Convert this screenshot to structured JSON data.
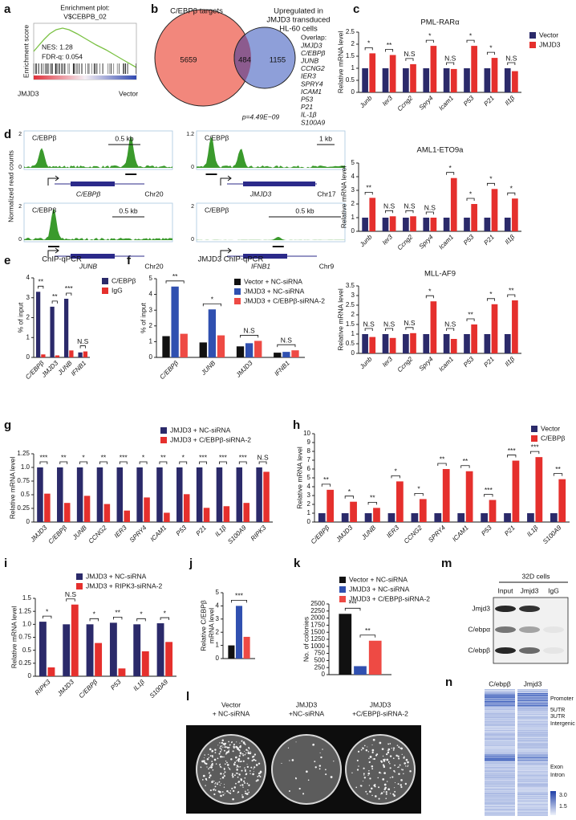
{
  "panel_labels": [
    "a",
    "b",
    "c",
    "d",
    "e",
    "f",
    "g",
    "h",
    "i",
    "j",
    "k",
    "l",
    "m",
    "n"
  ],
  "gsea": {
    "title": [
      "Enrichment plot:",
      "V$CEBPB_02"
    ],
    "ylabel": "Enrichment score",
    "nes": "NES: 1.28",
    "fdr": "FDR-q: 0.054",
    "left": "JMJD3",
    "right": "Vector"
  },
  "venn": {
    "left_label": "C/EBPβ targets",
    "right_label": [
      "Upregulated in",
      "JMJD3 transduced",
      "HL-60 cells"
    ],
    "left": 5659,
    "overlap": 484,
    "right": 1155,
    "overlap_title": "Overlap:",
    "overlap_genes": [
      "JMJD3",
      "C/EBPβ",
      "JUNB",
      "CCNG2",
      "IER3",
      "SPRY4",
      "ICAM1",
      "P53",
      "P21",
      "IL-1β",
      "S100A9"
    ],
    "p_value": "p=4.49E−09"
  },
  "tracks": {
    "ylabel": "Normalized read counts",
    "items": [
      {
        "label": "C/EBPβ",
        "ymax": "2",
        "ymin": "0",
        "scale": "0.5 kb",
        "gene": "C/EBPβ",
        "chr": "Chr20"
      },
      {
        "label": "C/EBPβ",
        "ymax": "1.2",
        "ymin": "0",
        "scale": "1 kb",
        "gene": "JMJD3",
        "chr": "Chr17"
      },
      {
        "label": "C/EBPβ",
        "ymax": "2",
        "ymin": "0",
        "scale": "0.5 kb",
        "gene": "JUNB",
        "chr": "Chr20"
      },
      {
        "label": "C/EBPβ",
        "ymax": "2",
        "ymin": "0",
        "scale": "0.5 kb",
        "gene": "IFNB1",
        "chr": "Chr9"
      }
    ]
  },
  "chart_data": [
    {
      "type": "bar",
      "title": "PML-RARα",
      "ylabel": [
        "Relative mRNA level"
      ],
      "categories": [
        "Junb",
        "Ier3",
        "Ccng2",
        "Spry4",
        "Icam1",
        "P53",
        "P21",
        "Il1β"
      ],
      "series": [
        {
          "name": "Vector",
          "color": "#2b2a6a",
          "values": [
            1,
            1,
            1,
            1,
            1,
            1,
            1,
            1
          ]
        },
        {
          "name": "JMJD3",
          "color": "#e5302d",
          "values": [
            1.62,
            1.55,
            1.17,
            1.93,
            0.97,
            1.93,
            1.43,
            0.88
          ]
        }
      ],
      "significance": [
        "*",
        "**",
        "N.S",
        "*",
        "N.S",
        "*",
        "*",
        "N.S"
      ],
      "ylim": [
        0,
        2.5
      ],
      "yticks": [
        0,
        0.5,
        1,
        1.5,
        2,
        2.5
      ],
      "legend": "upper right"
    },
    {
      "type": "bar",
      "title": "AML1-ETO9a",
      "ylabel": [
        "Relative mRNA level"
      ],
      "categories": [
        "Junb",
        "Ier3",
        "Ccng2",
        "Spry4",
        "Icam1",
        "P53",
        "P21",
        "Il1β"
      ],
      "series": [
        {
          "color": "#2b2a6a",
          "values": [
            1,
            1,
            1,
            1,
            1,
            1,
            1,
            1
          ]
        },
        {
          "color": "#e5302d",
          "values": [
            2.45,
            1.1,
            1.1,
            1.0,
            3.9,
            2.0,
            3.1,
            2.4
          ]
        }
      ],
      "significance": [
        "**",
        "N.S",
        "N.S",
        "N.S",
        "*",
        "*",
        "*",
        "*"
      ],
      "ylim": [
        0,
        5
      ],
      "yticks": [
        0,
        1,
        2,
        3,
        4,
        5
      ]
    },
    {
      "type": "bar",
      "title": "MLL-AF9",
      "ylabel": [
        "Relative mRNA level"
      ],
      "categories": [
        "Junb",
        "Ier3",
        "Ccng2",
        "Spry4",
        "Icam1",
        "P53",
        "P21",
        "Il1β"
      ],
      "series": [
        {
          "color": "#2b2a6a",
          "values": [
            1,
            1,
            1,
            1,
            1,
            1,
            1,
            1
          ]
        },
        {
          "color": "#e5302d",
          "values": [
            0.85,
            0.8,
            1.05,
            2.7,
            0.75,
            1.5,
            2.55,
            2.75
          ]
        }
      ],
      "significance": [
        "N.S",
        "N.S",
        "N.S",
        "*",
        "N.S",
        "**",
        "*",
        "**"
      ],
      "ylim": [
        0,
        3.5
      ],
      "yticks": [
        0,
        0.5,
        1,
        1.5,
        2,
        2.5,
        3,
        3.5
      ]
    },
    {
      "type": "bar",
      "title": "ChIP-qPCR",
      "ylabel": [
        "% of input"
      ],
      "categories": [
        "C/EBPβ",
        "JMJD3",
        "JUNB",
        "IFNB1"
      ],
      "series": [
        {
          "name": "C/EBPβ",
          "color": "#2b2a6a",
          "values": [
            3.3,
            2.55,
            2.95,
            0.25
          ]
        },
        {
          "name": "IgG",
          "color": "#e5302d",
          "values": [
            0.15,
            0.1,
            0.35,
            0.3
          ]
        }
      ],
      "significance": [
        "**",
        "**",
        "***",
        "N.S"
      ],
      "ylim": [
        0,
        4
      ],
      "yticks": [
        0,
        1,
        2,
        3,
        4
      ],
      "legend": "right"
    },
    {
      "type": "bar",
      "title": "JMJD3 ChIP-qPCR",
      "ylabel": [
        "% of input"
      ],
      "categories": [
        "C/EBPβ",
        "JUNB",
        "JMJD3",
        "IFNB1"
      ],
      "series": [
        {
          "name": "Vector + NC-siRNA",
          "color": "#111111",
          "values": [
            1.35,
            0.95,
            0.7,
            0.3
          ]
        },
        {
          "name": "JMJD3 + NC-siRNA",
          "color": "#3050b0",
          "values": [
            4.5,
            3.05,
            0.9,
            0.35
          ]
        },
        {
          "name": "JMJD3 + C/EBPβ-siRNA-2",
          "color": "#ee4a44",
          "values": [
            1.5,
            1.4,
            1.05,
            0.45
          ]
        }
      ],
      "significance": [
        "**",
        "*",
        "N.S",
        "N.S"
      ],
      "ylim": [
        0,
        5
      ],
      "yticks": [
        0,
        1,
        2,
        3,
        4,
        5
      ],
      "legend": "upper right"
    },
    {
      "type": "bar",
      "ylabel": [
        "Relative mRNA level"
      ],
      "categories": [
        "JMJD3",
        "C/EBPβ",
        "JUNB",
        "CCNG2",
        "IER3",
        "SPRY4",
        "ICAM1",
        "P53",
        "P21",
        "IL1β",
        "S100A9",
        "RIPK3"
      ],
      "series": [
        {
          "name": "JMJD3 + NC-siRNA",
          "color": "#2b2a6a",
          "values": [
            1,
            1,
            1,
            1,
            1,
            1,
            1,
            1,
            1,
            1,
            1,
            1
          ]
        },
        {
          "name": "JMJD3 + C/EBPβ-siRNA-2",
          "color": "#e5302d",
          "values": [
            0.52,
            0.35,
            0.48,
            0.33,
            0.21,
            0.45,
            0.17,
            0.51,
            0.26,
            0.29,
            0.35,
            0.92
          ]
        }
      ],
      "significance": [
        "***",
        "**",
        "*",
        "**",
        "***",
        "*",
        "**",
        "*",
        "***",
        "***",
        "***",
        "N.S"
      ],
      "ylim": [
        0,
        1.25
      ],
      "yticks": [
        0,
        0.25,
        0.5,
        0.75,
        {
          "value": 1,
          "label": "1.0"
        },
        1.25
      ],
      "legend": "top"
    },
    {
      "type": "bar",
      "ylabel": [
        "Relative mRNA level"
      ],
      "categories": [
        "C/EBPβ",
        "JMJD3",
        "JUNB",
        "IER3",
        "CCNG2",
        "SPRY4",
        "ICAM1",
        "P53",
        "P21",
        "IL1β",
        "S100A9"
      ],
      "series": [
        {
          "name": "Vector",
          "color": "#2b2a6a",
          "values": [
            1,
            1,
            1,
            1,
            1,
            1,
            1,
            1,
            1,
            1,
            1
          ]
        },
        {
          "name": "C/EBPβ",
          "color": "#e5302d",
          "values": [
            3.65,
            2.3,
            1.6,
            4.6,
            2.6,
            6.0,
            5.75,
            2.5,
            6.95,
            7.35,
            4.85
          ]
        }
      ],
      "significance": [
        "**",
        "*",
        "**",
        "*",
        "*",
        "**",
        "**",
        "***",
        "***",
        "***",
        "**"
      ],
      "ylim": [
        0,
        10
      ],
      "yticks": [
        0,
        1,
        2,
        3,
        4,
        5,
        6,
        7,
        8,
        9,
        10
      ],
      "legend": "upper right"
    },
    {
      "type": "bar",
      "ylabel": [
        "Relative mRNA level"
      ],
      "categories": [
        "RIPK3",
        "JMJD3",
        "C/EBPβ",
        "P53",
        "IL1β",
        "S100A9"
      ],
      "series": [
        {
          "name": "JMJD3 + NC-siRNA",
          "color": "#2b2a6a",
          "values": [
            1.05,
            1.0,
            1.0,
            1.03,
            1.0,
            1.02
          ]
        },
        {
          "name": "JMJD3 + RIPK3-siRNA-2",
          "color": "#e5302d",
          "values": [
            0.17,
            1.38,
            0.64,
            0.15,
            0.48,
            0.66
          ]
        }
      ],
      "significance": [
        "*",
        "N.S",
        "*",
        "**",
        "*",
        "*"
      ],
      "ylim": [
        0,
        1.5
      ],
      "yticks": [
        0,
        0.25,
        0.5,
        0.75,
        {
          "value": 1,
          "label": "1.0"
        },
        1.25,
        1.5
      ],
      "legend": "top"
    },
    {
      "type": "bar",
      "ylabel": [
        "Relative C/EBPβ",
        "mRNA level"
      ],
      "categories": [
        null
      ],
      "series": [
        {
          "color": "#111111",
          "values": [
            1.0
          ]
        },
        {
          "color": "#3050b0",
          "values": [
            4.0
          ]
        },
        {
          "color": "#ee4a44",
          "values": [
            1.65
          ]
        }
      ],
      "brackets": [
        {
          "series": [
            0,
            2
          ],
          "label": "***"
        }
      ],
      "ylim": [
        0,
        5
      ],
      "yticks": [
        0,
        1,
        2,
        3,
        4,
        5
      ]
    },
    {
      "type": "bar",
      "ylabel": [
        "No. of colonies"
      ],
      "categories": [
        null
      ],
      "series": [
        {
          "name": "Vector + NC-siRNA",
          "color": "#111111",
          "values": [
            2150
          ]
        },
        {
          "name": "JMJD3 + NC-siRNA",
          "color": "#3050b0",
          "values": [
            300
          ]
        },
        {
          "name": "JMJD3 + C/EBPβ-siRNA-2",
          "color": "#ee4a44",
          "values": [
            1200
          ]
        }
      ],
      "brackets": [
        {
          "series": [
            0,
            1
          ],
          "label": "***"
        },
        {
          "series": [
            1,
            2
          ],
          "label": "**"
        }
      ],
      "ylim": [
        0,
        2500
      ],
      "yticks": [
        0,
        250,
        500,
        750,
        1000,
        1250,
        1500,
        1750,
        2000,
        2250,
        2500
      ],
      "legend": "top"
    }
  ],
  "colonies": {
    "labels": [
      [
        "Vector",
        "+ NC-siRNA"
      ],
      [
        "JMJD3",
        "+NC-siRNA"
      ],
      [
        "JMJD3",
        "+C/EBPβ-siRNA-2"
      ]
    ]
  },
  "blot": {
    "title": "32D cells",
    "lanes": [
      "Input",
      "Jmjd3",
      "IgG"
    ],
    "rows": [
      "Jmjd3",
      "C/ebpα",
      "C/ebpβ"
    ]
  },
  "heatmap": {
    "columns": [
      "C/ebpβ",
      "Jmjd3"
    ],
    "regions": [
      "Promoter",
      "5UTR",
      "3UTR",
      "Intergenic",
      "Exon",
      "Intron"
    ],
    "scale": [
      "3.0",
      "1.5"
    ]
  }
}
